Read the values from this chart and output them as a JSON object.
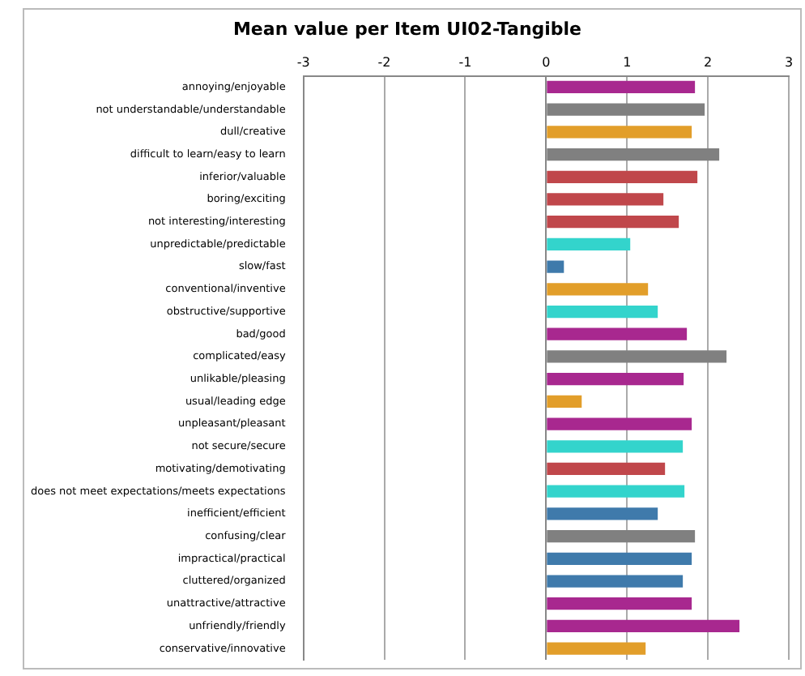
{
  "chart_data": {
    "type": "bar",
    "orientation": "horizontal",
    "title": "Mean value per Item UI02-Tangible",
    "categories": [
      "annoying/enjoyable",
      "not understandable/understandable",
      "dull/creative",
      "difficult to learn/easy to learn",
      "inferior/valuable",
      "boring/exciting",
      "not interesting/interesting",
      "unpredictable/predictable",
      "slow/fast",
      "conventional/inventive",
      "obstructive/supportive",
      "bad/good",
      "complicated/easy",
      "unlikable/pleasing",
      "usual/leading edge",
      "unpleasant/pleasant",
      "not secure/secure",
      "motivating/demotivating",
      "does not meet expectations/meets expectations",
      "inefficient/efficient",
      "confusing/clear",
      "impractical/practical",
      "cluttered/organized",
      "unattractive/attractive",
      "unfriendly/friendly",
      "conservative/innovative"
    ],
    "values": [
      1.84,
      1.96,
      1.8,
      2.14,
      1.87,
      1.45,
      1.64,
      1.04,
      0.22,
      1.26,
      1.38,
      1.74,
      2.23,
      1.7,
      0.44,
      1.8,
      1.69,
      1.47,
      1.71,
      1.38,
      1.84,
      1.8,
      1.69,
      1.8,
      2.39,
      1.23
    ],
    "colors": [
      "#a8288f",
      "#808080",
      "#e29e2a",
      "#808080",
      "#c0474b",
      "#c0474b",
      "#c0474b",
      "#33d4cc",
      "#3f7aab",
      "#e29e2a",
      "#33d4cc",
      "#a8288f",
      "#808080",
      "#a8288f",
      "#e29e2a",
      "#a8288f",
      "#33d4cc",
      "#c0474b",
      "#33d4cc",
      "#3f7aab",
      "#808080",
      "#3f7aab",
      "#3f7aab",
      "#a8288f",
      "#a8288f",
      "#e29e2a"
    ],
    "xlim": [
      -3,
      3
    ],
    "xticks": [
      -3,
      -2,
      -1,
      0,
      1,
      2,
      3
    ],
    "grid": "x",
    "legend": false
  }
}
